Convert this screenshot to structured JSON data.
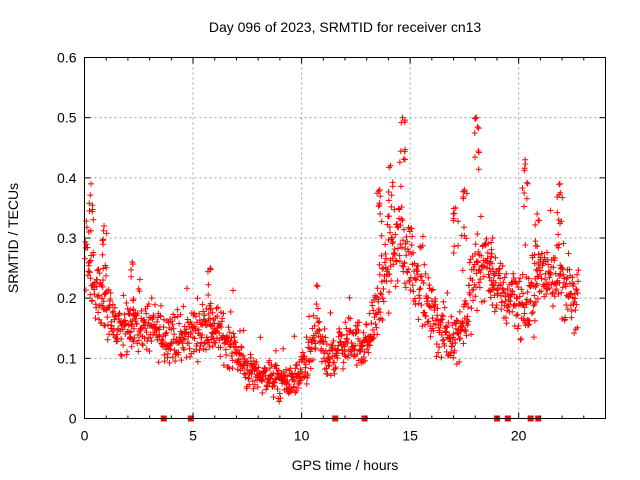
{
  "chart_data": {
    "type": "scatter",
    "title": "Day 096 of 2023, SRMTID for receiver cn13",
    "xlabel": "GPS time / hours",
    "ylabel": "SRMTID / TECUs",
    "xlim": [
      0,
      24
    ],
    "ylim": [
      0,
      0.6
    ],
    "grid": true,
    "marker": "+",
    "color": "#ff0000",
    "x_ticks": [
      0,
      5,
      10,
      15,
      20
    ],
    "x_tick_labels": [
      "0",
      "5",
      "10",
      "15",
      "20"
    ],
    "y_ticks": [
      0,
      0.1,
      0.2,
      0.3,
      0.4,
      0.5,
      0.6
    ],
    "y_tick_labels": [
      "0",
      "0.1",
      "0.2",
      "0.3",
      "0.4",
      "0.5",
      "0.6"
    ],
    "zero_value_markers_x": [
      3.65,
      4.9,
      11.55,
      12.9,
      19.0,
      19.5,
      20.55,
      20.9
    ],
    "trend": {
      "x": [
        0,
        0.3,
        0.8,
        1.5,
        2.2,
        3,
        3.7,
        4.5,
        5.2,
        6,
        6.8,
        7.5,
        8.3,
        9,
        9.6,
        10.3,
        10.7,
        11.2,
        11.7,
        12.3,
        13,
        13.6,
        14.1,
        14.5,
        14.8,
        15.3,
        15.8,
        16.3,
        16.9,
        17.5,
        18,
        18.5,
        18.9,
        19.3,
        19.8,
        20.2,
        20.6,
        21.1,
        21.6,
        22.1,
        22.6
      ],
      "y": [
        0.28,
        0.24,
        0.2,
        0.15,
        0.16,
        0.15,
        0.14,
        0.13,
        0.15,
        0.15,
        0.12,
        0.08,
        0.07,
        0.06,
        0.06,
        0.09,
        0.15,
        0.09,
        0.12,
        0.13,
        0.12,
        0.2,
        0.26,
        0.3,
        0.28,
        0.24,
        0.18,
        0.15,
        0.13,
        0.16,
        0.24,
        0.27,
        0.23,
        0.2,
        0.21,
        0.18,
        0.2,
        0.24,
        0.25,
        0.22,
        0.19
      ]
    },
    "spikes": [
      {
        "x": 0.3,
        "y": 0.39
      },
      {
        "x": 0.9,
        "y": 0.32
      },
      {
        "x": 2.2,
        "y": 0.26
      },
      {
        "x": 5.8,
        "y": 0.25
      },
      {
        "x": 13.6,
        "y": 0.38
      },
      {
        "x": 14.1,
        "y": 0.42
      },
      {
        "x": 14.65,
        "y": 0.5
      },
      {
        "x": 17.1,
        "y": 0.35
      },
      {
        "x": 17.5,
        "y": 0.38
      },
      {
        "x": 18.05,
        "y": 0.5
      },
      {
        "x": 18.8,
        "y": 0.3
      },
      {
        "x": 20.3,
        "y": 0.43
      },
      {
        "x": 20.85,
        "y": 0.34
      },
      {
        "x": 21.9,
        "y": 0.39
      }
    ]
  }
}
